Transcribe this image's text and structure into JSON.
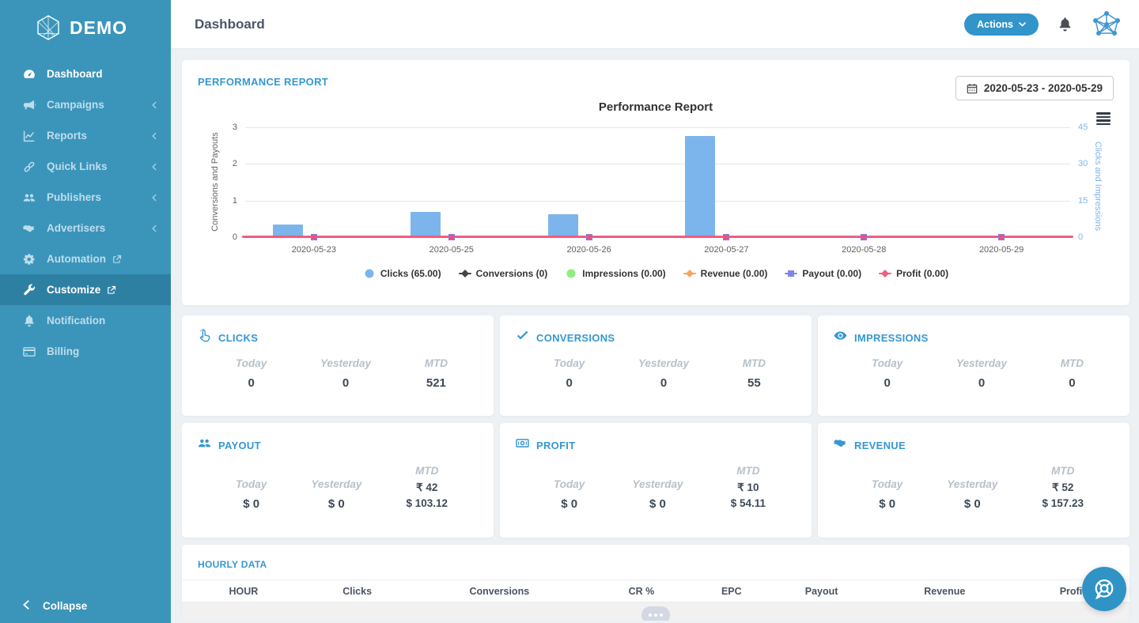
{
  "colors": {
    "sidebar": "#3b95ba",
    "sidebar_active_bg": "#2e80a3",
    "accent_blue": "#3295c9",
    "section_title_blue": "#3598d3"
  },
  "sidebar": {
    "logo_text": "DEMO",
    "items": [
      {
        "label": "Dashboard",
        "icon": "gauge-icon",
        "active": true
      },
      {
        "label": "Campaigns",
        "icon": "megaphone-icon",
        "chevron": true
      },
      {
        "label": "Reports",
        "icon": "chart-line-icon",
        "chevron": true
      },
      {
        "label": "Quick Links",
        "icon": "link-icon",
        "chevron": true
      },
      {
        "label": "Publishers",
        "icon": "users-icon",
        "chevron": true
      },
      {
        "label": "Advertisers",
        "icon": "handshake-icon",
        "chevron": true
      },
      {
        "label": "Automation",
        "icon": "cogs-icon",
        "external": true
      },
      {
        "label": "Customize",
        "icon": "wrench-icon",
        "external": true,
        "highlighted": true
      },
      {
        "label": "Notification",
        "icon": "bell-icon"
      },
      {
        "label": "Billing",
        "icon": "credit-card-icon"
      }
    ],
    "collapse_label": "Collapse"
  },
  "header": {
    "title": "Dashboard",
    "actions_label": "Actions"
  },
  "performance": {
    "section_title": "PERFORMANCE REPORT",
    "date_range": "2020-05-23 - 2020-05-29"
  },
  "chart_data": {
    "type": "bar",
    "subtype": "column + line combo, dual y-axis",
    "title": "Performance Report",
    "categories": [
      "2020-05-23",
      "2020-05-25",
      "2020-05-26",
      "2020-05-27",
      "2020-05-28",
      "2020-05-29"
    ],
    "series": [
      {
        "name": "Clicks (65.00)",
        "type": "column",
        "axis": "right",
        "color": "#7cb5ec",
        "marker": "circle",
        "values": [
          5,
          10,
          9,
          41,
          0,
          0
        ]
      },
      {
        "name": "Conversions (0)",
        "type": "line",
        "axis": "left",
        "color": "#434348",
        "marker": "diamond",
        "values": [
          0,
          0,
          0,
          0,
          0,
          0
        ]
      },
      {
        "name": "Impressions (0.00)",
        "type": "column",
        "axis": "right",
        "color": "#90ed7d",
        "marker": "circle",
        "values": [
          0,
          0,
          0,
          0,
          0,
          0
        ]
      },
      {
        "name": "Revenue (0.00)",
        "type": "line",
        "axis": "left",
        "color": "#f7a35c",
        "marker": "diamond",
        "values": [
          0,
          0,
          0,
          0,
          0,
          0
        ]
      },
      {
        "name": "Payout (0.00)",
        "type": "line",
        "axis": "left",
        "color": "#8085e9",
        "marker": "square",
        "values": [
          0,
          0,
          0,
          0,
          0,
          0
        ]
      },
      {
        "name": "Profit (0.00)",
        "type": "line",
        "axis": "left",
        "color": "#f15c80",
        "marker": "diamond",
        "values": [
          0,
          0,
          0,
          0,
          0,
          0
        ]
      }
    ],
    "left_axis": {
      "title": "Conversions and Payouts",
      "ticks": [
        0,
        1,
        2,
        3
      ],
      "range": [
        0,
        3
      ]
    },
    "right_axis": {
      "title": "Clicks and Impressions",
      "ticks": [
        0,
        15,
        30,
        45
      ],
      "range": [
        0,
        45
      ]
    },
    "grid": true,
    "legend_position": "bottom"
  },
  "stat_labels": {
    "today": "Today",
    "yesterday": "Yesterday",
    "mtd": "MTD"
  },
  "stats": {
    "clicks": {
      "title": "CLICKS",
      "icon": "hand-pointer-icon",
      "today": "0",
      "yesterday": "0",
      "mtd": "521"
    },
    "conversions": {
      "title": "CONVERSIONS",
      "icon": "check-icon",
      "today": "0",
      "yesterday": "0",
      "mtd": "55"
    },
    "impressions": {
      "title": "IMPRESSIONS",
      "icon": "eye-icon",
      "today": "0",
      "yesterday": "0",
      "mtd": "0"
    },
    "payout": {
      "title": "PAYOUT",
      "icon": "users-icon",
      "today": "$ 0",
      "yesterday": "$ 0",
      "mtd_inr": "₹ 42",
      "mtd_usd": "$ 103.12"
    },
    "profit": {
      "title": "PROFIT",
      "icon": "money-bill-icon",
      "today": "$ 0",
      "yesterday": "$ 0",
      "mtd_inr": "₹ 10",
      "mtd_usd": "$ 54.11"
    },
    "revenue": {
      "title": "REVENUE",
      "icon": "handshake-icon",
      "today": "$ 0",
      "yesterday": "$ 0",
      "mtd_inr": "₹ 52",
      "mtd_usd": "$ 157.23"
    }
  },
  "hourly": {
    "section_title": "HOURLY DATA",
    "columns": [
      "HOUR",
      "Clicks",
      "Conversions",
      "CR %",
      "EPC",
      "Payout",
      "Revenue",
      "Profit"
    ],
    "column_widths_pct": [
      13,
      11,
      19,
      11,
      8,
      11,
      15,
      12
    ]
  }
}
